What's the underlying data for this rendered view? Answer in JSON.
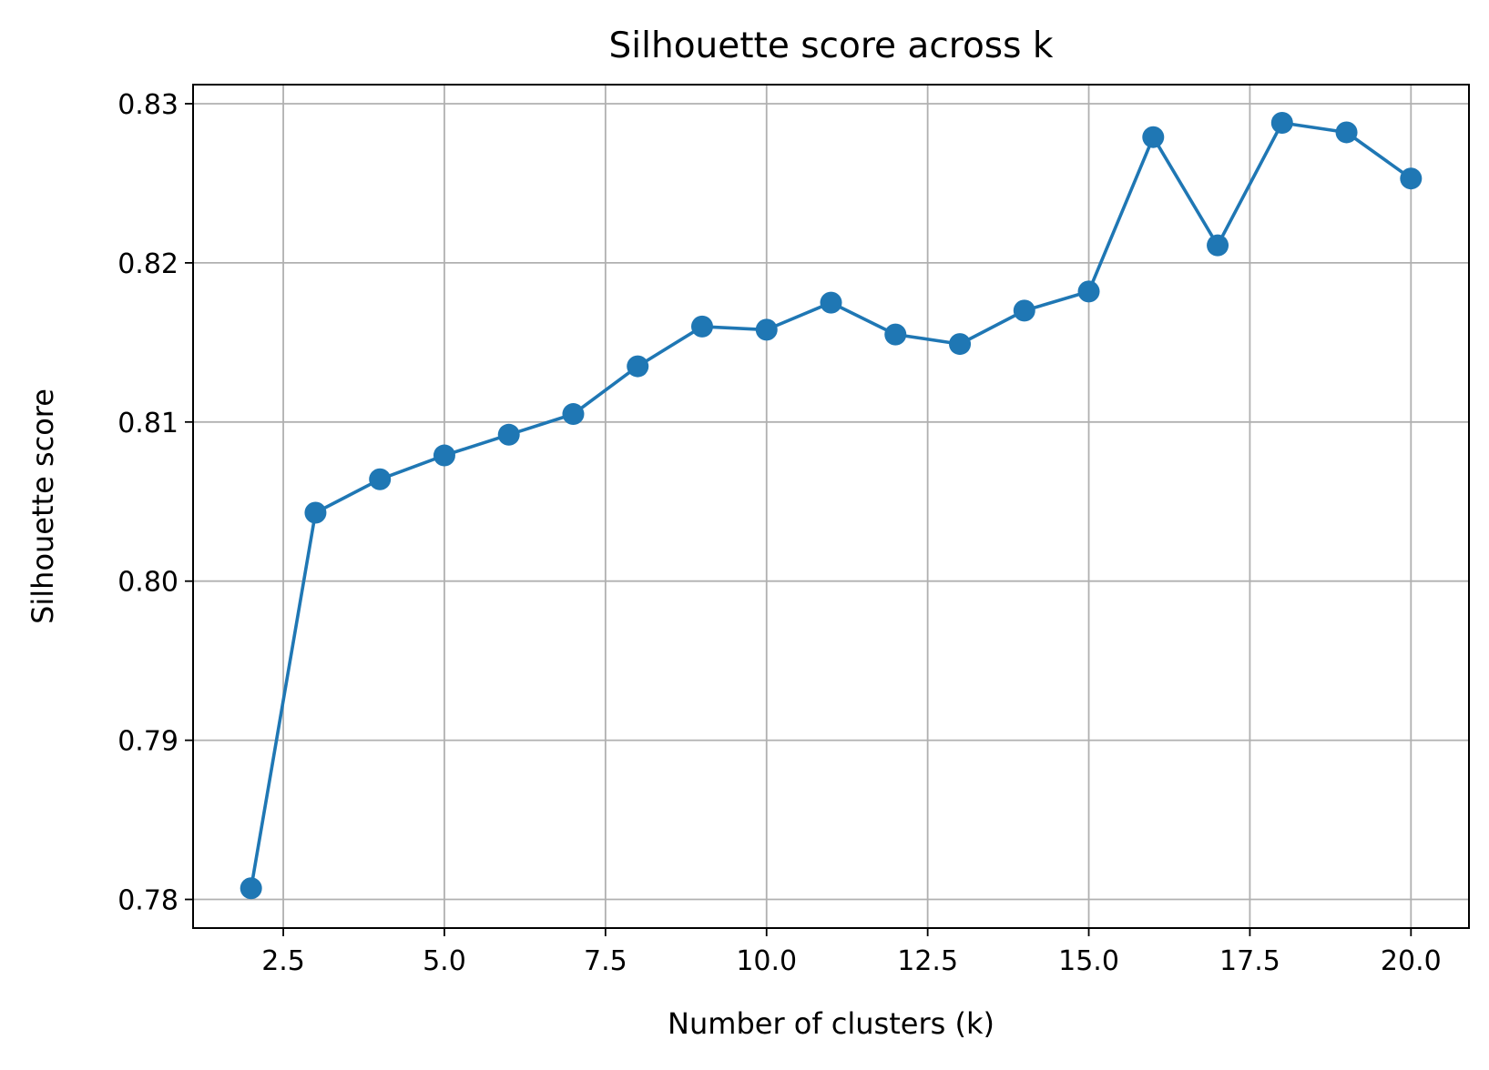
{
  "chart_data": {
    "type": "line",
    "title": "Silhouette score across k",
    "xlabel": "Number of clusters (k)",
    "ylabel": "Silhouette score",
    "xlim": [
      1.1,
      20.9
    ],
    "ylim": [
      0.7782,
      0.8312
    ],
    "xticks": [
      2.5,
      5.0,
      7.5,
      10.0,
      12.5,
      15.0,
      17.5,
      20.0
    ],
    "xtick_labels": [
      "2.5",
      "5.0",
      "7.5",
      "10.0",
      "12.5",
      "15.0",
      "17.5",
      "20.0"
    ],
    "yticks": [
      0.78,
      0.79,
      0.8,
      0.81,
      0.82,
      0.83
    ],
    "ytick_labels": [
      "0.78",
      "0.79",
      "0.80",
      "0.81",
      "0.82",
      "0.83"
    ],
    "grid": true,
    "marker": "circle",
    "color": "#1f77b4",
    "series": [
      {
        "x": [
          2,
          3,
          4,
          5,
          6,
          7,
          8,
          9,
          10,
          11,
          12,
          13,
          14,
          15,
          16,
          17,
          18,
          19,
          20
        ],
        "values": [
          0.7807,
          0.8043,
          0.8064,
          0.8079,
          0.8092,
          0.8105,
          0.8135,
          0.816,
          0.8158,
          0.8175,
          0.8155,
          0.8149,
          0.817,
          0.8182,
          0.8279,
          0.8211,
          0.8288,
          0.8282,
          0.8253
        ]
      }
    ]
  }
}
